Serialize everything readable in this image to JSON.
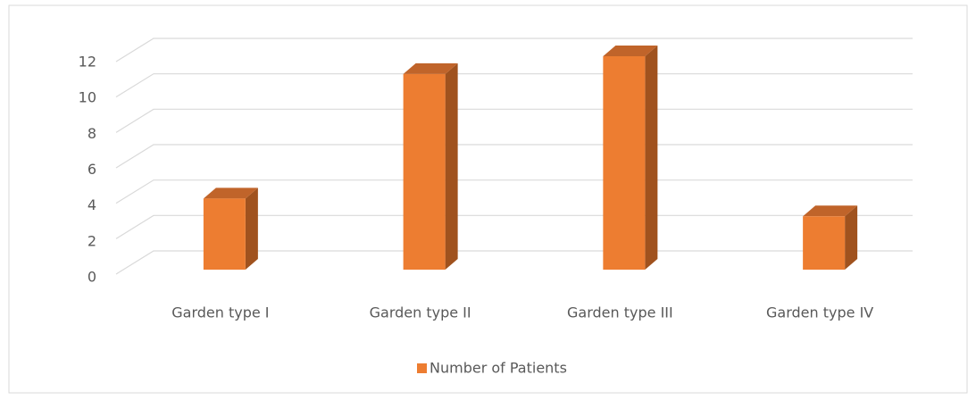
{
  "chart_data": {
    "type": "bar3d",
    "categories": [
      "Garden type I",
      "Garden type II",
      "Garden type III",
      "Garden type IV"
    ],
    "series": [
      {
        "name": "Number of Patients",
        "color": "#ed7d31",
        "values": [
          4,
          11,
          12,
          3
        ]
      }
    ],
    "ylim": [
      0,
      12
    ],
    "yticks": [
      0,
      2,
      4,
      6,
      8,
      10,
      12
    ],
    "grid": true,
    "legend": "bottom"
  }
}
